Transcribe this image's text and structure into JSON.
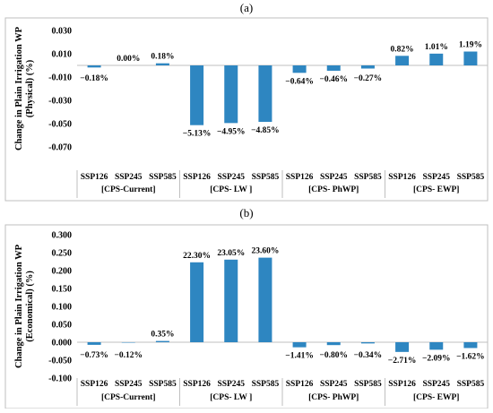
{
  "chart_data": [
    {
      "panel": "(a)",
      "type": "bar",
      "ylabel": "Change in Plain Irrigation WP (Physical) (%)",
      "ylabel_lines": [
        "Change in Plain Irrigation WP",
        "(Physical) (%)"
      ],
      "ylim": [
        -0.07,
        0.03
      ],
      "yticks": [
        0.03,
        0.01,
        -0.01,
        -0.03,
        -0.05,
        -0.07
      ],
      "ytick_labels": [
        "0.030",
        "0.010",
        "-0.010",
        "-0.030",
        "-0.050",
        "-0.070"
      ],
      "grid": false,
      "bar_color": "#2e86c1",
      "groups": [
        "[CPS-Current]",
        "[CPS- LW ]",
        "[CPS- PhWP]",
        "[CPS- EWP]"
      ],
      "scenarios": [
        "SSP126",
        "SSP245",
        "SSP585"
      ],
      "values": [
        -0.0018,
        0.0,
        0.0018,
        -0.0513,
        -0.0495,
        -0.0485,
        -0.0064,
        -0.0046,
        -0.0027,
        0.0082,
        0.0101,
        0.0119
      ],
      "data_labels": [
        "−0.18%",
        "0.00%",
        "0.18%",
        "−5.13%",
        "−4.95%",
        "−4.85%",
        "−0.64%",
        "−0.46%",
        "−0.27%",
        "0.82%",
        "1.01%",
        "1.19%"
      ]
    },
    {
      "panel": "(b)",
      "type": "bar",
      "ylabel": "Change in Plain Irrigation WP (Economical) (%)",
      "ylabel_lines": [
        "Change in Plain Irrigation WP",
        "(Economical) (%)"
      ],
      "ylim": [
        -0.1,
        0.3
      ],
      "yticks": [
        0.3,
        0.25,
        0.2,
        0.15,
        0.1,
        0.05,
        0.0,
        -0.05,
        -0.1
      ],
      "ytick_labels": [
        "0.300",
        "0.250",
        "0.200",
        "0.150",
        "0.100",
        "0.050",
        "0.000",
        "-0.050",
        "-0.100"
      ],
      "grid": false,
      "bar_color": "#2e86c1",
      "groups": [
        "[CPS-Current]",
        "[CPS- LW ]",
        "[CPS- PhWP]",
        "[CPS- EWP]"
      ],
      "scenarios": [
        "SSP126",
        "SSP245",
        "SSP585"
      ],
      "values": [
        -0.0073,
        -0.0012,
        0.0035,
        0.223,
        0.2305,
        0.236,
        -0.0141,
        -0.008,
        -0.0034,
        -0.0271,
        -0.0209,
        -0.0162
      ],
      "data_labels": [
        "−0.73%",
        "−0.12%",
        "0.35%",
        "22.30%",
        "23.05%",
        "23.60%",
        "−1.41%",
        "−0.80%",
        "−0.34%",
        "−2.71%",
        "−2.09%",
        "−1.62%"
      ]
    }
  ]
}
